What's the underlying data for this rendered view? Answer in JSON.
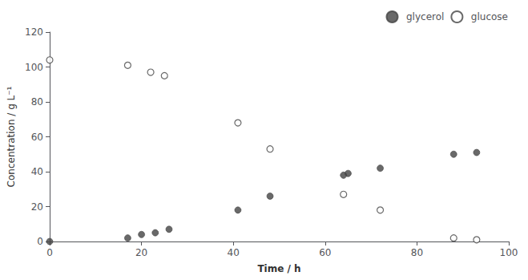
{
  "chart_data": {
    "type": "scatter",
    "xlabel": "Time / h",
    "ylabel": "Concentration / g L⁻¹",
    "xlim": [
      0,
      100
    ],
    "ylim": [
      0,
      120
    ],
    "xticks": [
      0,
      20,
      40,
      60,
      80,
      100
    ],
    "yticks": [
      0,
      20,
      40,
      60,
      80,
      100,
      120
    ],
    "grid": false,
    "legend": "upper right",
    "series": [
      {
        "name": "glycerol",
        "color": "#444444",
        "marker": "circle",
        "x": [
          0,
          17,
          20,
          23,
          26,
          41,
          48,
          64,
          65,
          72,
          88,
          93
        ],
        "values": [
          0,
          2,
          4,
          5,
          7,
          18,
          26,
          38,
          39,
          42,
          50,
          51
        ]
      },
      {
        "name": "glucose",
        "color": "#444444",
        "marker": "open circle",
        "x": [
          0,
          17,
          22,
          25,
          41,
          48,
          64,
          72,
          88,
          93
        ],
        "values": [
          104,
          101,
          97,
          95,
          68,
          53,
          27,
          18,
          2,
          1
        ]
      }
    ]
  }
}
